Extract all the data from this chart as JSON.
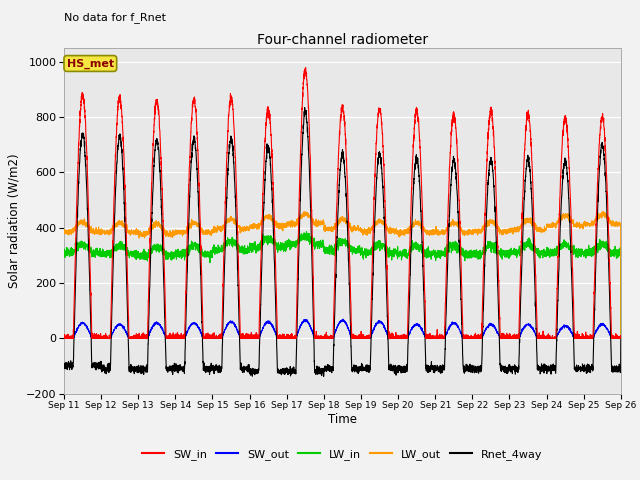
{
  "title": "Four-channel radiometer",
  "xlabel": "Time",
  "ylabel": "Solar radiation (W/m2)",
  "ylim": [
    -200,
    1050
  ],
  "no_data_text": "No data for f_Rnet",
  "station_label": "HS_met",
  "x_tick_labels": [
    "Sep 11",
    "Sep 12",
    "Sep 13",
    "Sep 14",
    "Sep 15",
    "Sep 16",
    "Sep 17",
    "Sep 18",
    "Sep 19",
    "Sep 20",
    "Sep 21",
    "Sep 22",
    "Sep 23",
    "Sep 24",
    "Sep 25",
    "Sep 26"
  ],
  "legend_labels": [
    "SW_in",
    "SW_out",
    "LW_in",
    "LW_out",
    "Rnet_4way"
  ],
  "legend_colors": [
    "#ff0000",
    "#0000ff",
    "#00cc00",
    "#ff9900",
    "#000000"
  ],
  "background_color": "#e8e8e8",
  "n_days": 15,
  "SW_in_peaks": [
    880,
    870,
    860,
    860,
    870,
    830,
    970,
    835,
    830,
    820,
    810,
    820,
    810,
    800,
    800
  ],
  "SW_out_peaks": [
    55,
    50,
    55,
    55,
    60,
    60,
    65,
    65,
    60,
    50,
    55,
    50,
    50,
    45,
    50
  ],
  "LW_in_base": [
    310,
    305,
    300,
    305,
    320,
    330,
    340,
    320,
    310,
    305,
    305,
    305,
    310,
    310,
    310
  ],
  "LW_out_base": [
    385,
    383,
    378,
    382,
    395,
    405,
    415,
    395,
    388,
    383,
    382,
    387,
    392,
    408,
    413
  ],
  "Rnet_peaks": [
    740,
    730,
    715,
    720,
    720,
    690,
    820,
    665,
    665,
    650,
    645,
    645,
    650,
    640,
    700
  ],
  "Rnet_night": [
    -100,
    -110,
    -110,
    -110,
    -110,
    -120,
    -120,
    -110,
    -110,
    -110,
    -110,
    -110,
    -110,
    -110,
    -110
  ]
}
